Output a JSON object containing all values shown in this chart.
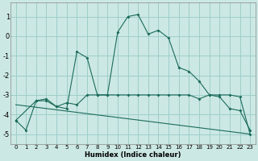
{
  "xlabel": "Humidex (Indice chaleur)",
  "bg_color": "#cce8e4",
  "grid_color": "#9ececa",
  "line_color": "#1a6b5a",
  "xlim": [
    -0.5,
    23.5
  ],
  "ylim": [
    -5.5,
    1.7
  ],
  "yticks": [
    -5,
    -4,
    -3,
    -2,
    -1,
    0,
    1
  ],
  "xticks": [
    0,
    1,
    2,
    3,
    4,
    5,
    6,
    7,
    8,
    9,
    10,
    11,
    12,
    13,
    14,
    15,
    16,
    17,
    18,
    19,
    20,
    21,
    22,
    23
  ],
  "curve1_x": [
    0,
    1,
    2,
    3,
    4,
    5,
    6,
    7,
    8,
    9,
    10,
    11,
    12,
    13,
    14,
    15,
    16,
    17,
    18,
    19,
    20,
    21,
    22,
    23
  ],
  "curve1_y": [
    -4.3,
    -4.8,
    -3.3,
    -3.3,
    -3.6,
    -3.7,
    -0.8,
    -1.1,
    -3.0,
    -3.0,
    0.2,
    1.0,
    1.1,
    0.1,
    0.3,
    -0.1,
    -1.6,
    -1.8,
    -2.3,
    -3.0,
    -3.1,
    -3.7,
    -3.8,
    -4.8
  ],
  "curve2_x": [
    0,
    2,
    3,
    4,
    5,
    6,
    7,
    8,
    9,
    10,
    11,
    12,
    13,
    14,
    15,
    16,
    17,
    18,
    19,
    20,
    21,
    22,
    23
  ],
  "curve2_y": [
    -4.3,
    -3.3,
    -3.2,
    -3.6,
    -3.4,
    -3.5,
    -3.0,
    -3.0,
    -3.0,
    -3.0,
    -3.0,
    -3.0,
    -3.0,
    -3.0,
    -3.0,
    -3.0,
    -3.0,
    -3.2,
    -3.0,
    -3.0,
    -3.0,
    -3.1,
    -5.0
  ],
  "curve3_x": [
    0,
    23
  ],
  "curve3_y": [
    -3.5,
    -5.0
  ]
}
